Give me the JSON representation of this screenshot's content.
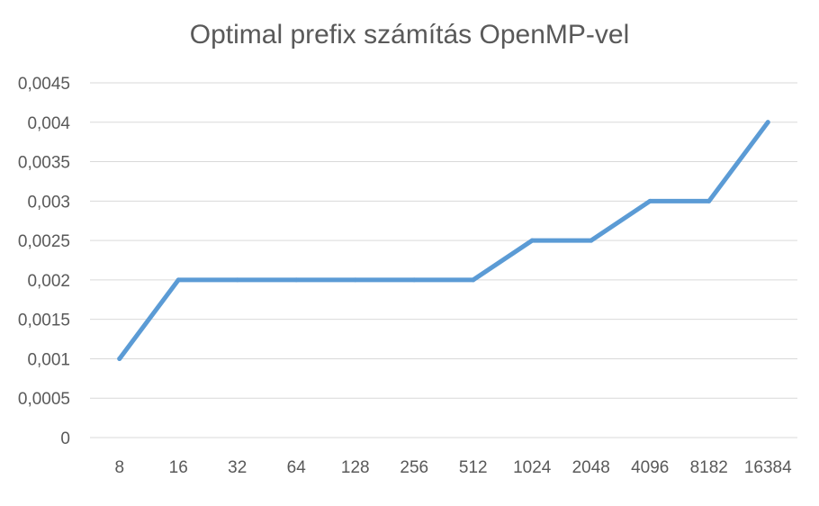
{
  "chart_data": {
    "type": "line",
    "title": "Optimal prefix számítás OpenMP-vel",
    "xlabel": "",
    "ylabel": "",
    "categories": [
      "8",
      "16",
      "32",
      "64",
      "128",
      "256",
      "512",
      "1024",
      "2048",
      "4096",
      "8182",
      "16384"
    ],
    "series": [
      {
        "color": "#5b9bd5",
        "values": [
          0.001,
          0.002,
          0.002,
          0.002,
          0.002,
          0.002,
          0.002,
          0.0025,
          0.0025,
          0.003,
          0.003,
          0.004
        ]
      }
    ],
    "ylim": [
      0,
      0.0045
    ],
    "y_ticks": [
      0,
      0.0005,
      0.001,
      0.0015,
      0.002,
      0.0025,
      0.003,
      0.0035,
      0.004,
      0.0045
    ],
    "y_tick_labels": [
      "0",
      "0,0005",
      "0,001",
      "0,0015",
      "0,002",
      "0,0025",
      "0,003",
      "0,0035",
      "0,004",
      "0,0045"
    ],
    "grid": true,
    "legend": "none"
  }
}
